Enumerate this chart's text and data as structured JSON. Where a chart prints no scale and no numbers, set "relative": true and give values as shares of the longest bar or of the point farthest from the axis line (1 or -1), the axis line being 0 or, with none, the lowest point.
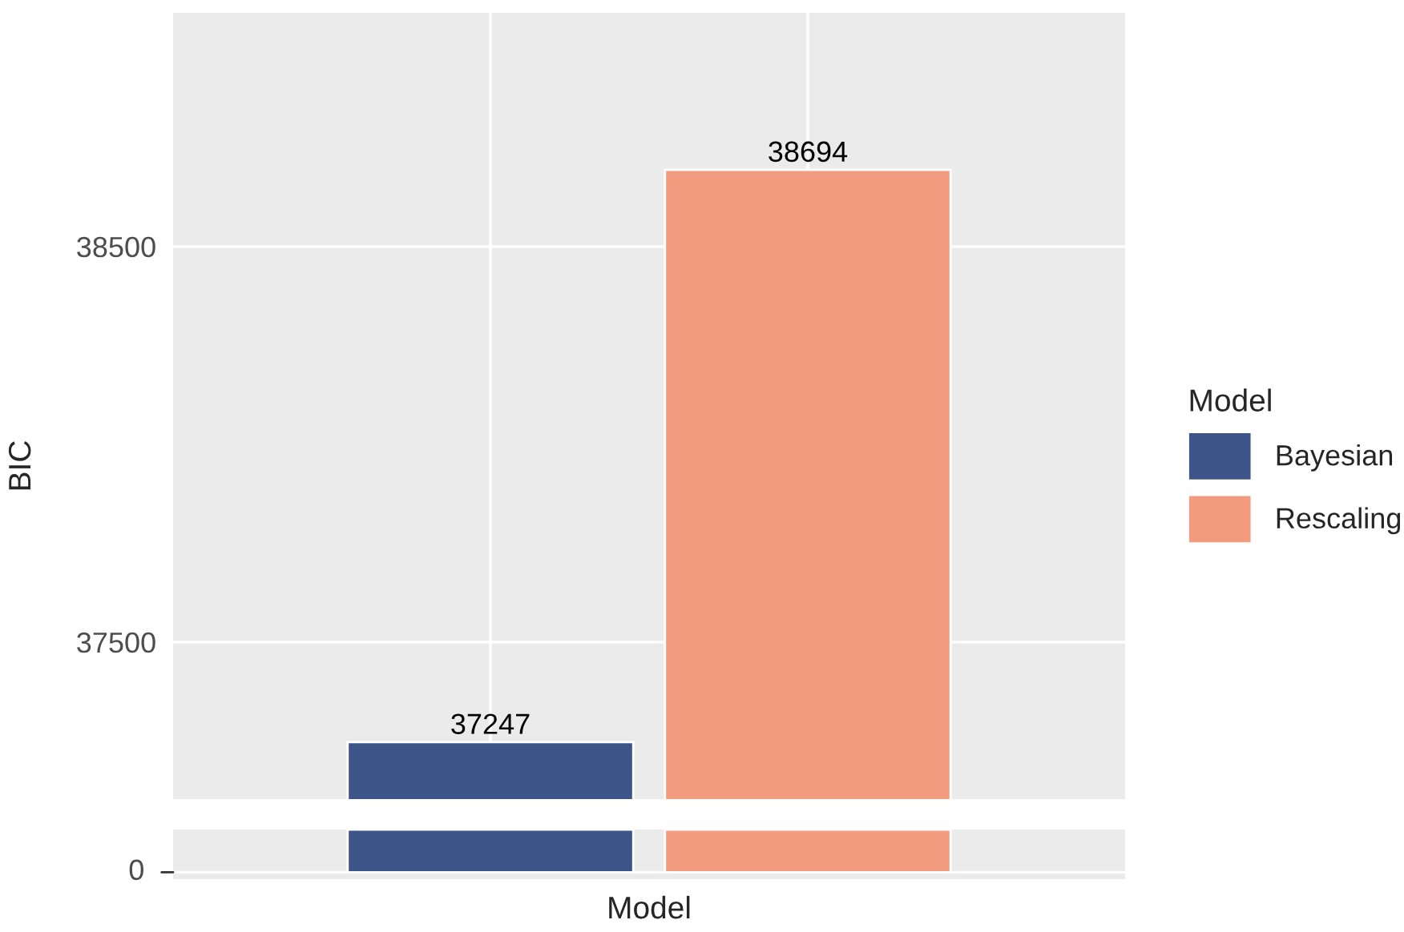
{
  "chart_data": [
    {
      "type": "bar",
      "categories": [
        null,
        null
      ],
      "ylabel": "BIC",
      "legend_title": "Model",
      "legend": "right",
      "grid": true,
      "data_labels": true,
      "tick_labels": "y",
      "ylim": [
        37103,
        39091
      ],
      "yticks": [
        37500,
        38500
      ],
      "series": [
        {
          "name": "Bayesian",
          "color": "#3c5488",
          "values": [
            37247,
            null
          ]
        },
        {
          "name": "Rescaling",
          "color": "#f39b7f",
          "values": [
            null,
            38694
          ]
        }
      ]
    },
    {
      "type": "bar",
      "categories": [
        null,
        null
      ],
      "xlabel": "Model",
      "relative": true,
      "annotations": [
        "0"
      ],
      "values": [
        1,
        1
      ],
      "colors": [
        "#3c5488",
        "#f39b7f"
      ]
    }
  ]
}
